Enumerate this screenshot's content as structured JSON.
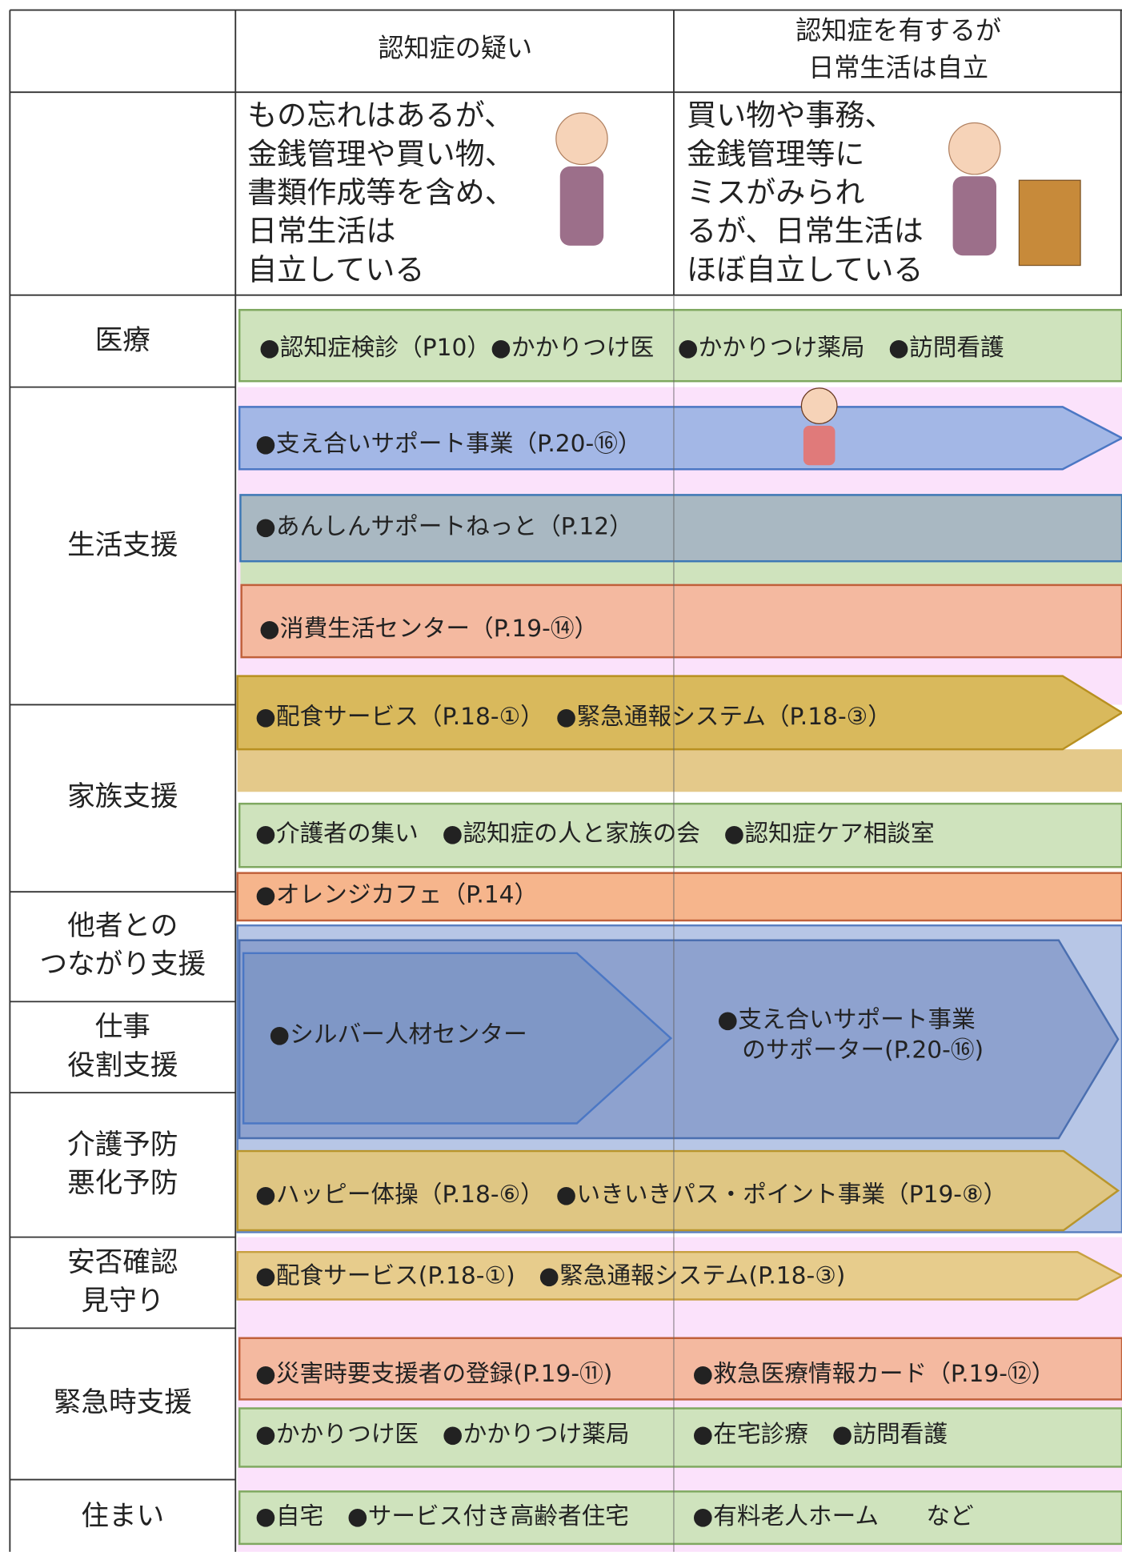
{
  "header": {
    "columns": [
      [
        "認知症の疑い"
      ],
      [
        "認知症を有するが",
        "日常生活は自立"
      ]
    ]
  },
  "descriptions": [
    [
      "もの忘れはあるが、",
      "金銭管理や買い物、",
      "書類作成等を含め、",
      "日常生活は",
      "自立している"
    ],
    [
      "買い物や事務、",
      "金銭管理等に",
      "ミスがみられ",
      "るが、日常生活は",
      "ほぼ自立している"
    ]
  ],
  "rows": [
    [
      "医療"
    ],
    [
      "生活支援"
    ],
    [
      "家族支援"
    ],
    [
      "他者との",
      "つながり支援"
    ],
    [
      "仕事",
      "役割支援"
    ],
    [
      "介護予防",
      "悪化予防"
    ],
    [
      "安否確認",
      "見守り"
    ],
    [
      "緊急時支援"
    ],
    [
      "住まい"
    ]
  ],
  "services": [
    [
      "●認知症検診（P10）●かかりつけ医　●かかりつけ薬局　●訪問看護"
    ],
    [
      "●支え合いサポート事業（P.20-⑯）"
    ],
    [
      "●あんしんサポートねっと（P.12）"
    ],
    [
      "●消費生活センター（P.19-⑭）"
    ],
    [
      "●配食サービス（P.18-①）　●緊急通報システム（P.18-③）"
    ],
    [
      "●介護者の集い　●認知症の人と家族の会　●認知症ケア相談室"
    ],
    [
      "●オレンジカフェ（P.14）"
    ],
    [
      "●シルバー人材センター"
    ],
    [
      "●支え合いサポート事業",
      "のサポーター(P.20-⑯)"
    ],
    [
      "●ハッピー体操（P.18-⑥）　●いきいきパス・ポイント事業（P19-⑧）"
    ],
    [
      "●配食サービス(P.18-①)　●緊急通報システム(P.18-③)"
    ],
    [
      "●災害時要支援者の登録(P.19-⑪)",
      "●救急医療情報カード（P.19-⑫）"
    ],
    [
      "●かかりつけ医　●かかりつけ薬局",
      "●在宅診療　●訪問看護"
    ],
    [
      "●自宅　●サービス付き高齢者住宅",
      "●有料老人ホーム　　など"
    ]
  ]
}
